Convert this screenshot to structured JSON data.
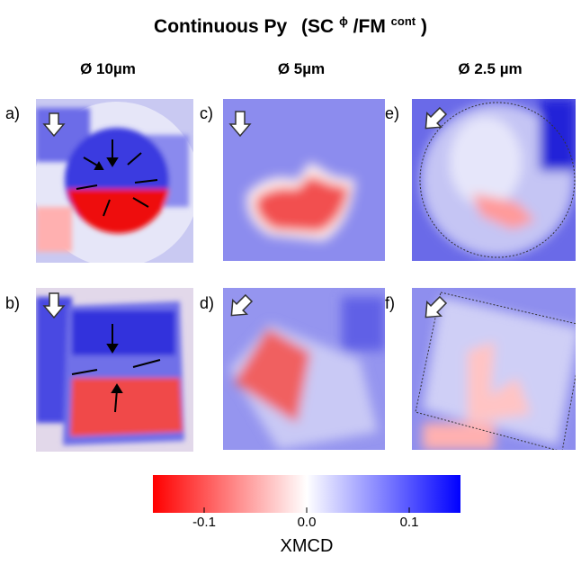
{
  "title": {
    "main": "Continuous Py",
    "open": "(SC",
    "sup1": "ϕ",
    "mid": "/FM",
    "sup2": "cont",
    "close": ")"
  },
  "columns": [
    "Ø 10µm",
    "Ø 5µm",
    "Ø 2.5 µm"
  ],
  "panels": [
    "a)",
    "b)",
    "c)",
    "d)",
    "e)",
    "f)"
  ],
  "colorbar": {
    "label": "XMCD",
    "lim": [
      -0.15,
      0.15
    ],
    "ticks": [
      -0.1,
      {
        "value": 0,
        "label": "0.0"
      },
      0.1
    ],
    "colors": [
      "#ff0000",
      "#ffffff",
      "#0000ff"
    ]
  }
}
